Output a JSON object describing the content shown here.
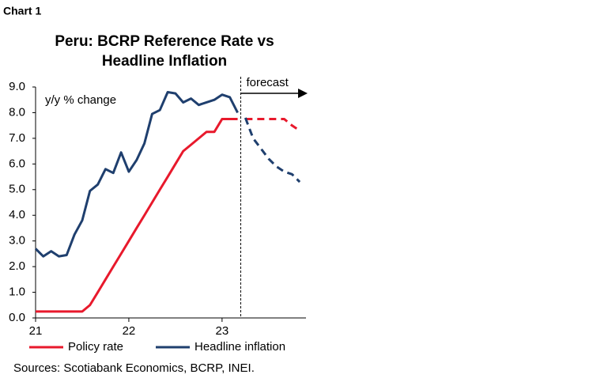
{
  "header": "Chart 1",
  "chart_data": {
    "type": "line",
    "title": [
      "Peru: BCRP Reference Rate vs",
      "Headline Inflation"
    ],
    "y_label": "y/y % change",
    "annotation": "forecast",
    "forecast_start": 23.2,
    "x": [
      21,
      21.083,
      21.167,
      21.25,
      21.333,
      21.417,
      21.5,
      21.583,
      21.667,
      21.75,
      21.833,
      21.917,
      22,
      22.083,
      22.167,
      22.25,
      22.333,
      22.417,
      22.5,
      22.583,
      22.667,
      22.75,
      22.833,
      22.917,
      23,
      23.083,
      23.167,
      23.25,
      23.333,
      23.417,
      23.5,
      23.583,
      23.667,
      23.75,
      23.833
    ],
    "xlim": [
      21,
      23.9
    ],
    "xticks": [
      21,
      22,
      23
    ],
    "ylim": [
      0,
      9
    ],
    "yticks": [
      {
        "value": 0,
        "label": "0.0"
      },
      {
        "value": 1,
        "label": "1.0"
      },
      {
        "value": 2,
        "label": "2.0"
      },
      {
        "value": 3,
        "label": "3.0"
      },
      {
        "value": 4,
        "label": "4.0"
      },
      {
        "value": 5,
        "label": "5.0"
      },
      {
        "value": 6,
        "label": "6.0"
      },
      {
        "value": 7,
        "label": "7.0"
      },
      {
        "value": 8,
        "label": "8.0"
      },
      {
        "value": 9,
        "label": "9.0"
      }
    ],
    "series": [
      {
        "name": "Policy rate",
        "color": "#e8192c",
        "values": [
          0.25,
          0.25,
          0.25,
          0.25,
          0.25,
          0.25,
          0.25,
          0.5,
          1.0,
          1.5,
          2.0,
          2.5,
          3.0,
          3.5,
          4.0,
          4.5,
          5.0,
          5.5,
          6.0,
          6.5,
          6.75,
          7.0,
          7.25,
          7.25,
          7.75,
          7.75,
          7.75,
          null,
          null,
          null,
          null,
          null,
          null,
          null,
          null
        ],
        "forecast": [
          null,
          null,
          null,
          null,
          null,
          null,
          null,
          null,
          null,
          null,
          null,
          null,
          null,
          null,
          null,
          null,
          null,
          null,
          null,
          null,
          null,
          null,
          null,
          null,
          null,
          null,
          null,
          7.75,
          7.75,
          7.75,
          7.75,
          7.75,
          7.75,
          7.5,
          7.3
        ]
      },
      {
        "name": "Headline inflation",
        "color": "#1f3f6e",
        "values": [
          2.7,
          2.4,
          2.6,
          2.4,
          2.45,
          3.25,
          3.8,
          4.95,
          5.2,
          5.8,
          5.65,
          6.45,
          5.7,
          6.15,
          6.8,
          7.95,
          8.1,
          8.8,
          8.75,
          8.4,
          8.55,
          8.3,
          8.4,
          8.5,
          8.7,
          8.6,
          8.0,
          null,
          null,
          null,
          null,
          null,
          null,
          null,
          null
        ],
        "forecast": [
          null,
          null,
          null,
          null,
          null,
          null,
          null,
          null,
          null,
          null,
          null,
          null,
          null,
          null,
          null,
          null,
          null,
          null,
          null,
          null,
          null,
          null,
          null,
          null,
          null,
          null,
          null,
          7.8,
          7.0,
          6.6,
          6.2,
          5.9,
          5.7,
          5.6,
          5.3
        ]
      }
    ]
  },
  "source": "Sources: Scotiabank Economics, BCRP, INEI."
}
